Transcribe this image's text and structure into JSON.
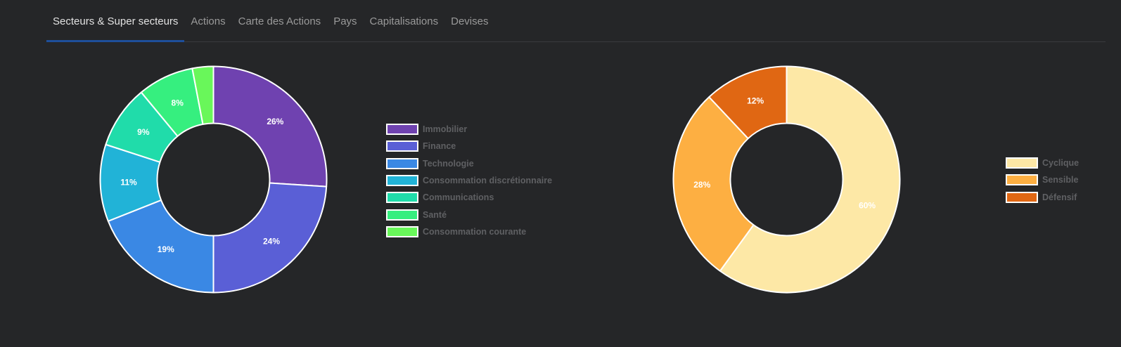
{
  "tabs": [
    {
      "label": "Secteurs & Super secteurs",
      "active": true
    },
    {
      "label": "Actions",
      "active": false
    },
    {
      "label": "Carte des Actions",
      "active": false
    },
    {
      "label": "Pays",
      "active": false
    },
    {
      "label": "Capitalisations",
      "active": false
    },
    {
      "label": "Devises",
      "active": false
    }
  ],
  "chart_data": [
    {
      "type": "pie",
      "variant": "doughnut",
      "legend_position": "right",
      "slices": [
        {
          "label": "Immobilier",
          "value": 26,
          "data_label": "26%",
          "color": "#6f42b0"
        },
        {
          "label": "Finance",
          "value": 24,
          "data_label": "24%",
          "color": "#5a5fd6"
        },
        {
          "label": "Technologie",
          "value": 19,
          "data_label": "19%",
          "color": "#3a88e4"
        },
        {
          "label": "Consommation discrétionnaire",
          "value": 11,
          "data_label": "11%",
          "color": "#21b3d7"
        },
        {
          "label": "Communications",
          "value": 9,
          "data_label": "9%",
          "color": "#20dcaa"
        },
        {
          "label": "Santé",
          "value": 8,
          "data_label": "8%",
          "color": "#36ef7f"
        },
        {
          "label": "Consommation courante",
          "value": 3,
          "data_label": "",
          "color": "#69f75a"
        }
      ]
    },
    {
      "type": "pie",
      "variant": "doughnut",
      "legend_position": "right",
      "slices": [
        {
          "label": "Cyclique",
          "value": 60,
          "data_label": "60%",
          "color": "#fde8a6"
        },
        {
          "label": "Sensible",
          "value": 28,
          "data_label": "28%",
          "color": "#fdaf42"
        },
        {
          "label": "Défensif",
          "value": 12,
          "data_label": "12%",
          "color": "#e06713"
        }
      ]
    }
  ]
}
